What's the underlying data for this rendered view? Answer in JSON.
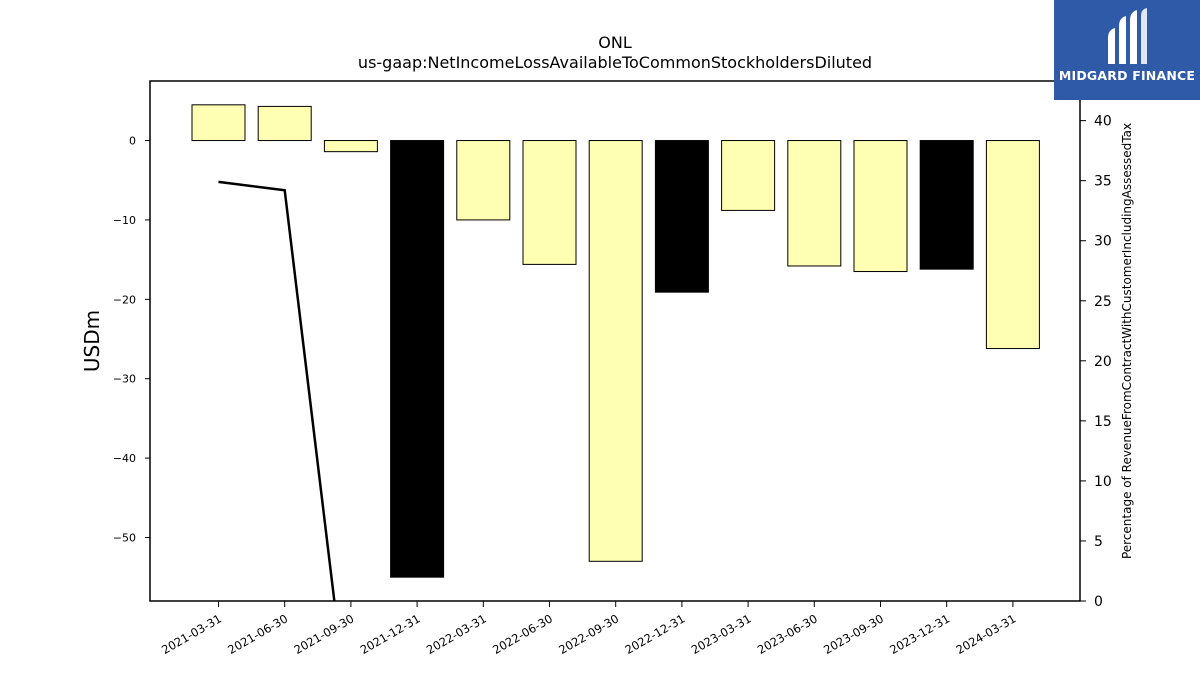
{
  "chart_data": {
    "type": "bar",
    "title": "ONL",
    "subtitle": "us-gaap:NetIncomeLossAvailableToCommonStockholdersDiluted",
    "ylabel": "USDm",
    "y2label": "Percentage of RevenueFromContractWithCustomerIncludingAssessedTax",
    "ylim": [
      -58,
      7.5
    ],
    "y2lim": [
      0,
      43.3
    ],
    "yticks": [
      0,
      -10,
      -20,
      -30,
      -40,
      -50
    ],
    "y2ticks": [
      0,
      5,
      10,
      15,
      20,
      25,
      30,
      35,
      40
    ],
    "categories": [
      "2021-03-31",
      "2021-06-30",
      "2021-09-30",
      "2021-12-31",
      "2022-03-31",
      "2022-06-30",
      "2022-09-30",
      "2022-12-31",
      "2023-03-31",
      "2023-06-30",
      "2023-09-30",
      "2023-12-31",
      "2024-03-31"
    ],
    "values": [
      4.5,
      4.3,
      -1.4,
      -55.0,
      -10.0,
      -15.6,
      -53.0,
      -19.1,
      -8.8,
      -15.8,
      -16.5,
      -16.2,
      -26.2
    ],
    "bar_colors": [
      "#ffffb3",
      "#ffffb3",
      "#ffffb3",
      "#000000",
      "#ffffb3",
      "#ffffb3",
      "#ffffb3",
      "#000000",
      "#ffffb3",
      "#ffffb3",
      "#ffffb3",
      "#000000",
      "#ffffb3"
    ],
    "line_values": [
      34.9,
      34.2,
      null,
      null,
      null,
      null,
      null,
      null,
      null,
      null,
      null,
      null,
      null
    ],
    "line_exit": {
      "x_index": 1.75,
      "y2": 0
    },
    "grid": false,
    "colors": {
      "positive": "#ffffb3",
      "highlight": "#000000",
      "line": "#000000"
    }
  },
  "logo": {
    "text": "MIDGARD FINANCE",
    "icon": "midgard-logo-icon",
    "color": "#2f5aa8"
  }
}
